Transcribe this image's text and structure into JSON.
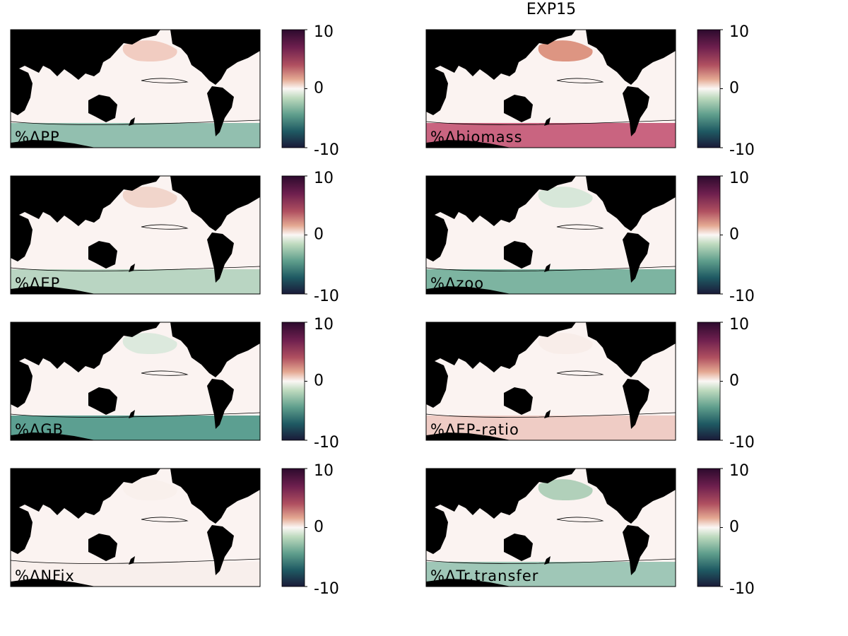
{
  "title": "EXP15",
  "colorbar": {
    "clim": [
      -10,
      10
    ],
    "ticks": [
      -10,
      0,
      10
    ]
  },
  "panels": [
    {
      "label": "%ΔPP"
    },
    {
      "label": "%Δbiomass"
    },
    {
      "label": "%ΔEP"
    },
    {
      "label": "%Δzoo"
    },
    {
      "label": "%ΔGB"
    },
    {
      "label": "%ΔEP-ratio"
    },
    {
      "label": "%ΔNFix"
    },
    {
      "label": "%ΔTr.transfer"
    }
  ]
}
